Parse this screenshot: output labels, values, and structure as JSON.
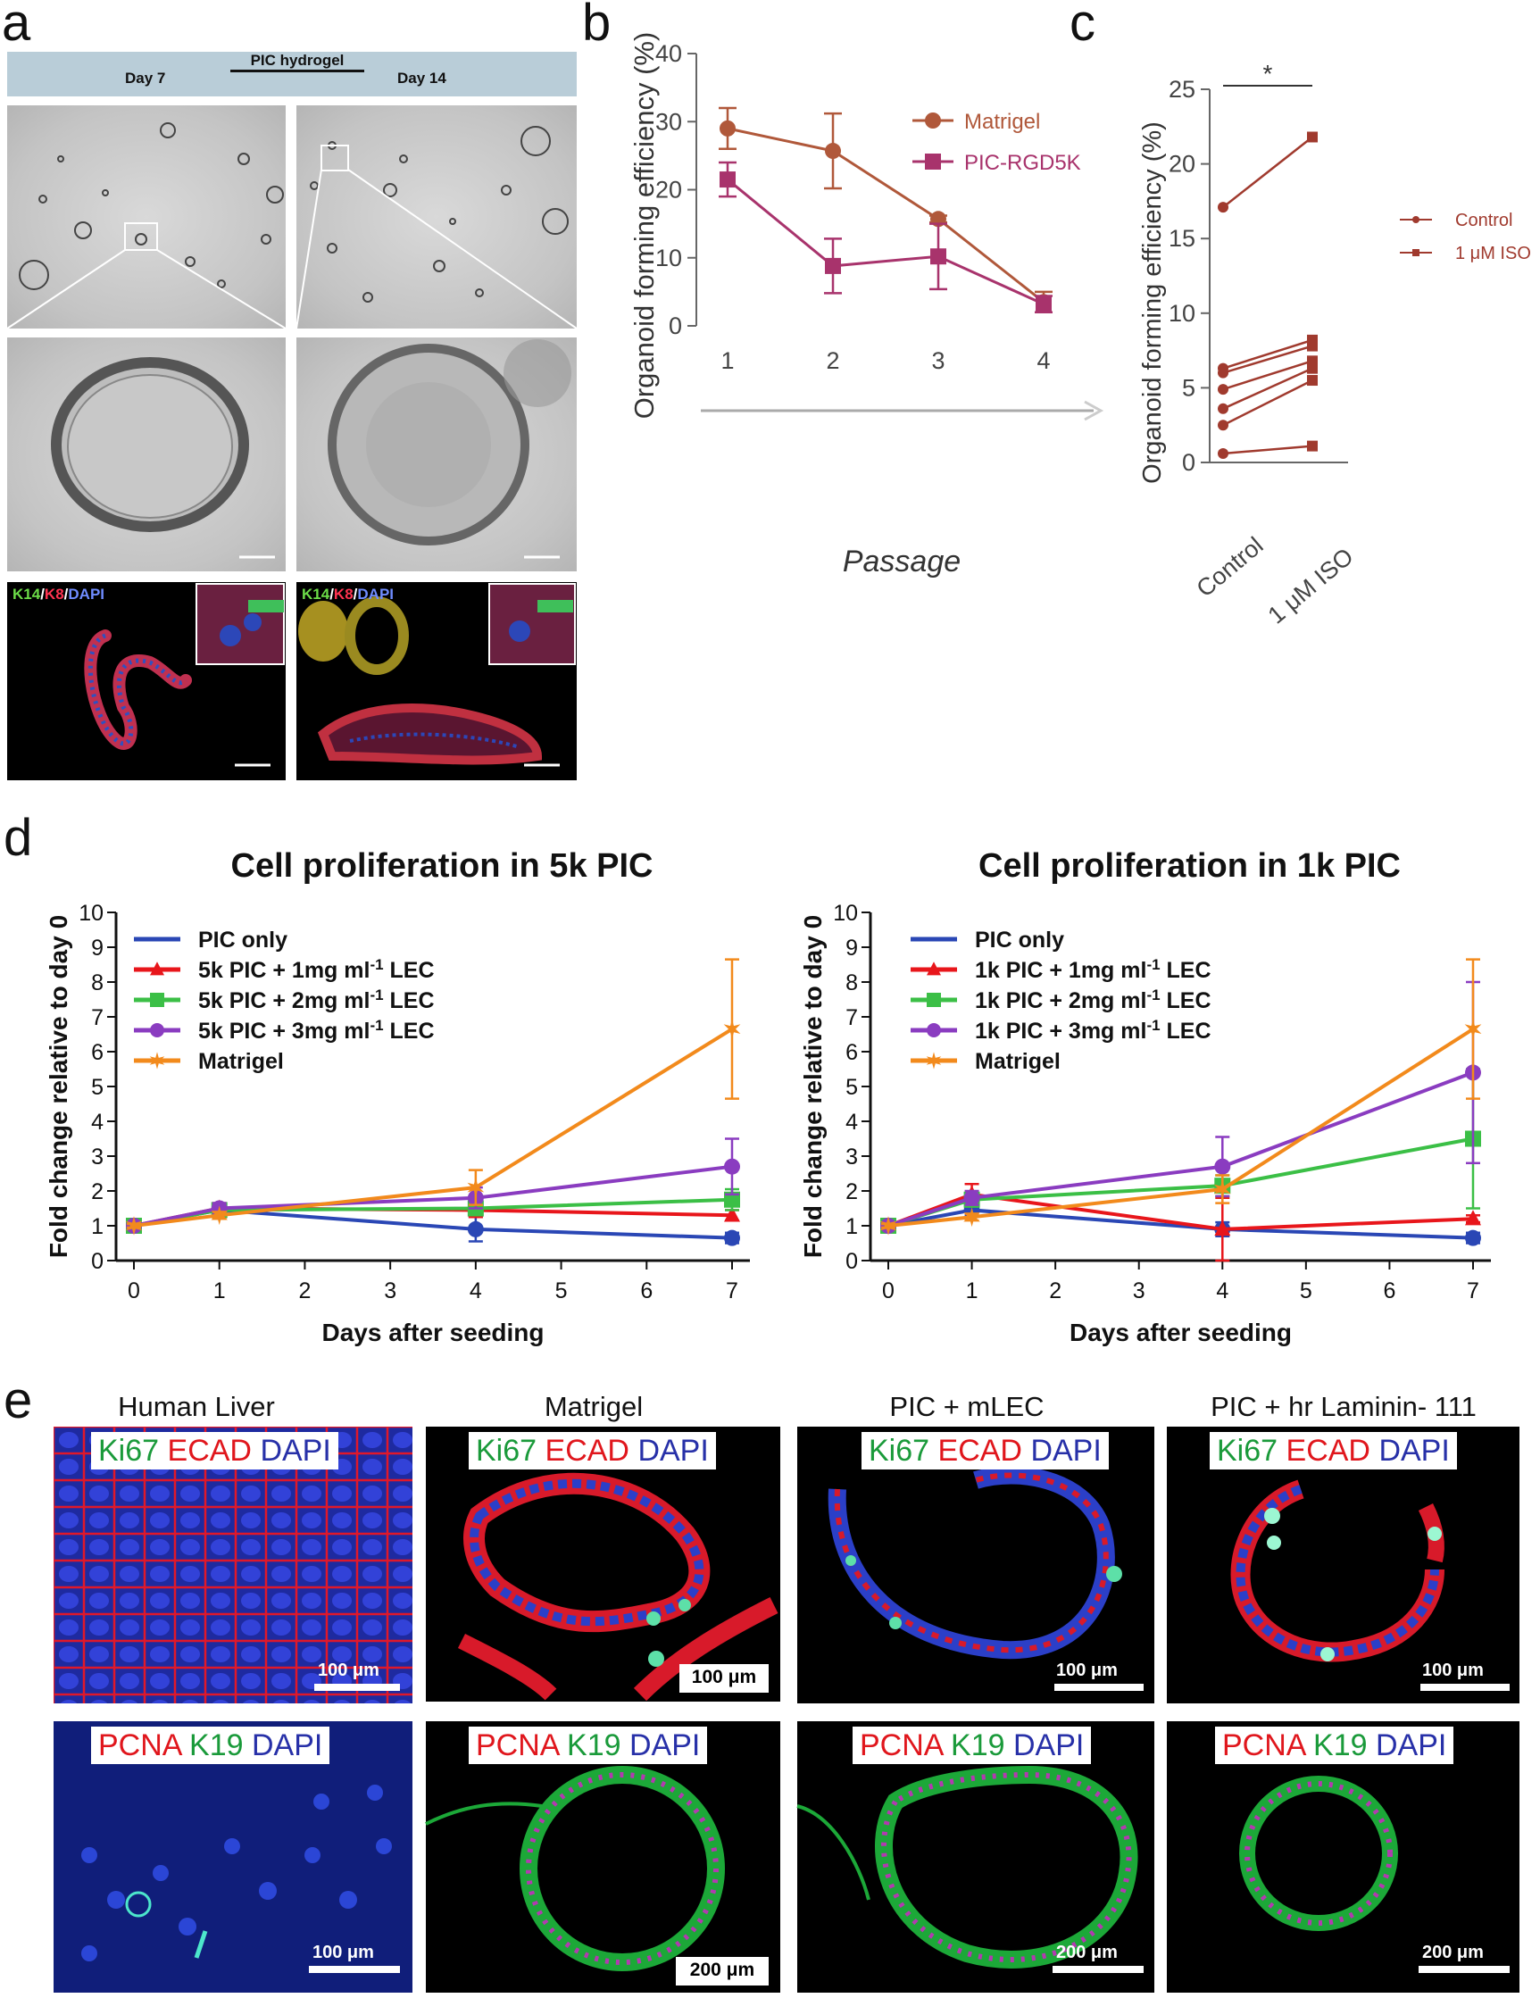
{
  "panel_a": {
    "letter": "a",
    "header_title": "PIC hydrogel",
    "day_left": "Day 7",
    "day_right": "Day 14",
    "stain_left": {
      "k14": "K14",
      "k8": "K8",
      "dapi": "DAPI"
    },
    "stain_right": {
      "k14": "K14",
      "k8": "K8",
      "dapi": "DAPI"
    }
  },
  "panel_b": {
    "letter": "b"
  },
  "panel_c": {
    "letter": "c"
  },
  "panel_d": {
    "letter": "d"
  },
  "panel_e": {
    "letter": "e",
    "columns": [
      "Human Liver",
      "Matrigel",
      "PIC + mLEC",
      "PIC + hr Laminin- 111"
    ],
    "row1_stain": {
      "ki67": "Ki67",
      "ecad": "ECAD",
      "dapi": "DAPI"
    },
    "row2_stain": {
      "pcna": "PCNA",
      "k19": "K19",
      "dapi": "DAPI"
    },
    "scale_row1": "100 μm",
    "scale_row2": [
      "100 μm",
      "200 μm",
      "200 μm",
      "200 μm"
    ]
  },
  "chart_data": [
    {
      "id": "b",
      "type": "line",
      "xlabel": "Passage",
      "ylabel": "Organoid forming efficiency (%)",
      "categories": [
        "1",
        "2",
        "3",
        "4"
      ],
      "ylim": [
        0,
        40
      ],
      "yticks": [
        "0",
        "10",
        "20",
        "30",
        "40"
      ],
      "legend_position": "top-right",
      "colors": {
        "Matrigel": "#b0583a",
        "PIC-RGD5K": "#a8336c"
      },
      "series": [
        {
          "name": "Matrigel",
          "marker": "circle",
          "values": [
            29,
            25.7,
            15.7,
            3.5
          ],
          "errors": [
            3,
            5.5,
            0.5,
            1.5
          ]
        },
        {
          "name": "PIC-RGD5K",
          "marker": "square",
          "values": [
            21.5,
            8.8,
            10.2,
            3.2
          ],
          "errors": [
            2.5,
            4,
            4.8,
            1.2
          ]
        }
      ]
    },
    {
      "id": "c",
      "type": "line",
      "ylabel": "Organoid forming efficiency (%)",
      "categories": [
        "Control",
        "1 μM ISO"
      ],
      "ylim": [
        0,
        25
      ],
      "yticks": [
        "0",
        "5",
        "10",
        "15",
        "20",
        "25"
      ],
      "significance": "*",
      "legend_position": "right",
      "color": "#a03a2e",
      "legend": [
        "Control",
        "1 μM ISO"
      ],
      "pairs": [
        [
          17.1,
          21.8
        ],
        [
          6.3,
          8.2
        ],
        [
          6.0,
          7.8
        ],
        [
          4.9,
          6.8
        ],
        [
          3.6,
          6.3
        ],
        [
          2.5,
          5.5
        ],
        [
          0.6,
          1.1
        ]
      ]
    },
    {
      "id": "d-left",
      "type": "line",
      "title": "Cell proliferation in 5k PIC",
      "xlabel": "Days after seeding",
      "ylabel": "Fold change relative to day 0",
      "xlim": [
        0,
        7
      ],
      "xticks": [
        "0",
        "1",
        "2",
        "3",
        "4",
        "5",
        "6",
        "7"
      ],
      "ylim": [
        0,
        10
      ],
      "yticks": [
        "0",
        "1",
        "2",
        "3",
        "4",
        "5",
        "6",
        "7",
        "8",
        "9",
        "10"
      ],
      "legend_position": "top-left",
      "x": [
        0,
        1,
        4,
        7
      ],
      "series": [
        {
          "name": "PIC only",
          "color": "#2a47b5",
          "marker": "circle",
          "values": [
            1,
            1.45,
            0.9,
            0.65
          ],
          "errors": [
            0.05,
            0.2,
            0.35,
            0.15
          ]
        },
        {
          "name_pre": "5k PIC + 1mg ml",
          "name_sup": "-1",
          "name_post": " LEC",
          "color": "#e8161b",
          "marker": "triangle",
          "values": [
            1,
            1.5,
            1.45,
            1.3
          ],
          "errors": [
            0.05,
            0.15,
            0.2,
            0.15
          ]
        },
        {
          "name_pre": "5k PIC + 2mg ml",
          "name_sup": "-1",
          "name_post": " LEC",
          "color": "#3bbf46",
          "marker": "square",
          "values": [
            1,
            1.45,
            1.5,
            1.75
          ],
          "errors": [
            0.05,
            0.15,
            0.2,
            0.3
          ]
        },
        {
          "name_pre": "5k PIC + 3mg ml",
          "name_sup": "-1",
          "name_post": " LEC",
          "color": "#8a3cc0",
          "marker": "circle",
          "values": [
            1,
            1.5,
            1.8,
            2.7
          ],
          "errors": [
            0.05,
            0.15,
            0.3,
            0.8
          ]
        },
        {
          "name": "Matrigel",
          "color": "#f28a1c",
          "marker": "star",
          "values": [
            1,
            1.3,
            2.1,
            6.65
          ],
          "errors": [
            0.05,
            0.1,
            0.5,
            2.0
          ]
        }
      ]
    },
    {
      "id": "d-right",
      "type": "line",
      "title": "Cell proliferation in 1k PIC",
      "xlabel": "Days after seeding",
      "ylabel": "Fold change relative to day 0",
      "xlim": [
        0,
        7
      ],
      "xticks": [
        "0",
        "1",
        "2",
        "3",
        "4",
        "5",
        "6",
        "7"
      ],
      "ylim": [
        0,
        10
      ],
      "yticks": [
        "0",
        "1",
        "2",
        "3",
        "4",
        "5",
        "6",
        "7",
        "8",
        "9",
        "10"
      ],
      "legend_position": "top-left",
      "x": [
        0,
        1,
        4,
        7
      ],
      "series": [
        {
          "name": "PIC only",
          "color": "#2a47b5",
          "marker": "circle",
          "values": [
            1,
            1.45,
            0.9,
            0.65
          ],
          "errors": [
            0.05,
            0.15,
            0.2,
            0.15
          ]
        },
        {
          "name_pre": "1k PIC + 1mg ml",
          "name_sup": "-1",
          "name_post": " LEC",
          "color": "#e8161b",
          "marker": "triangle",
          "values": [
            1,
            1.9,
            0.9,
            1.2
          ],
          "errors": [
            0.05,
            0.3,
            0.9,
            0.1
          ]
        },
        {
          "name_pre": "1k PIC + 2mg ml",
          "name_sup": "-1",
          "name_post": " LEC",
          "color": "#3bbf46",
          "marker": "square",
          "values": [
            1,
            1.75,
            2.15,
            3.5
          ],
          "errors": [
            0.05,
            0.2,
            0.3,
            2.0
          ]
        },
        {
          "name_pre": "1k PIC + 3mg ml",
          "name_sup": "-1",
          "name_post": " LEC",
          "color": "#8a3cc0",
          "marker": "circle",
          "values": [
            1,
            1.8,
            2.7,
            5.4
          ],
          "errors": [
            0.05,
            0.2,
            0.85,
            2.6
          ]
        },
        {
          "name": "Matrigel",
          "color": "#f28a1c",
          "marker": "star",
          "values": [
            1,
            1.25,
            2.05,
            6.65
          ],
          "errors": [
            0.05,
            0.1,
            0.4,
            2.0
          ]
        }
      ]
    }
  ]
}
